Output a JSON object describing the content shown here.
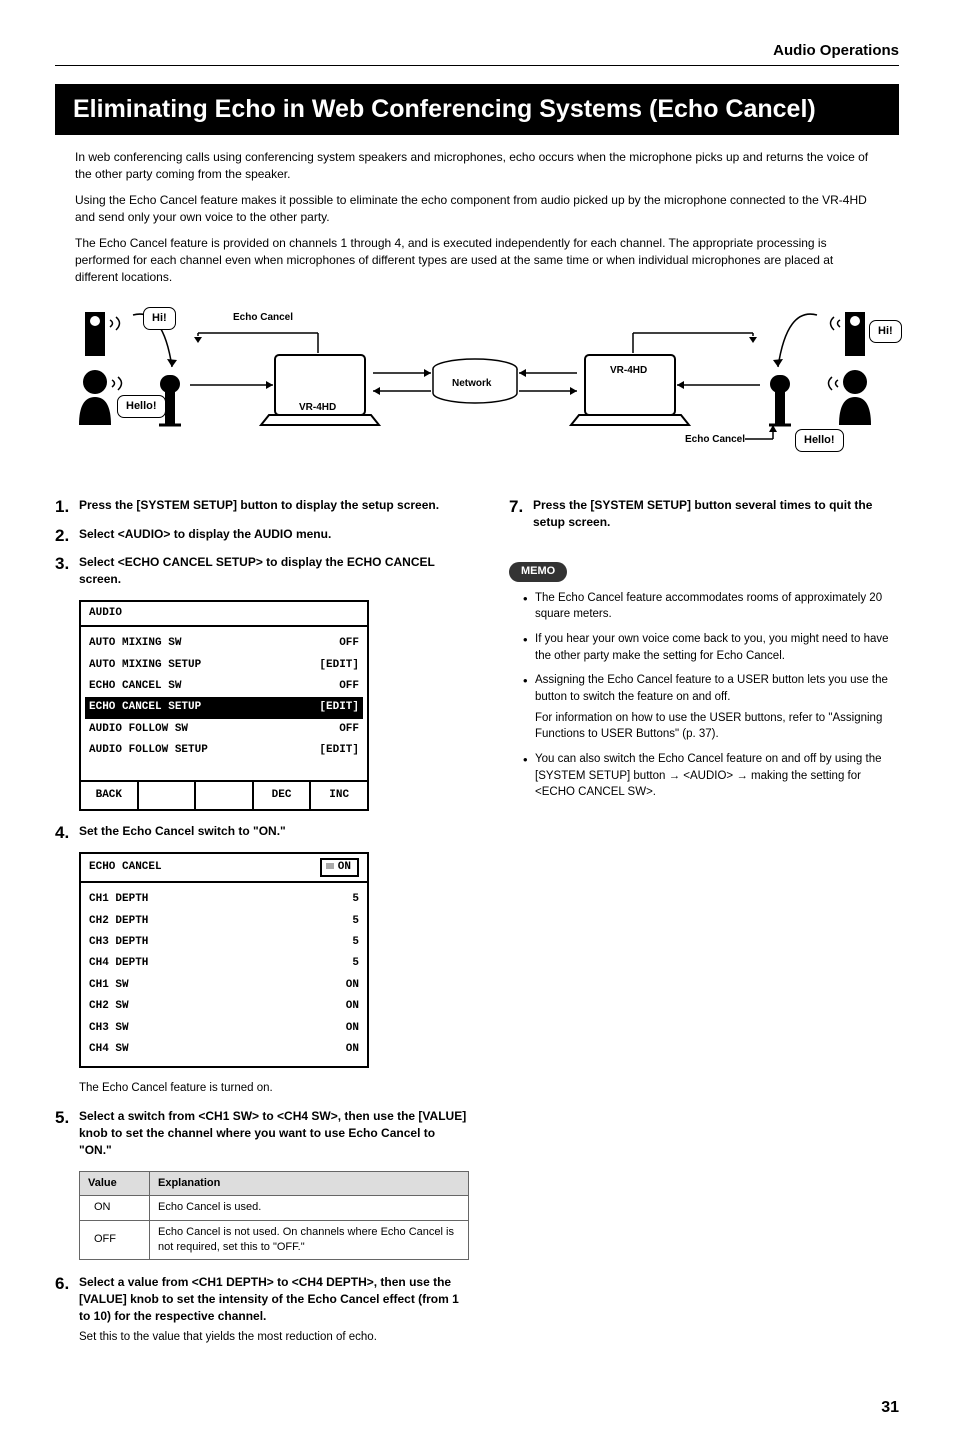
{
  "header": {
    "section": "Audio Operations"
  },
  "main_heading": "Eliminating Echo in Web Conferencing Systems (Echo Cancel)",
  "intro": {
    "p1": "In web conferencing calls using conferencing system speakers and microphones, echo occurs when the microphone picks up and returns the voice of the other party coming from the speaker.",
    "p2": "Using the Echo Cancel feature makes it possible to eliminate the echo component from audio picked up by the microphone connected to the VR-4HD and send only your own voice to the other party.",
    "p3": "The Echo Cancel feature is provided on channels 1 through 4, and is executed independently for each channel. The appropriate processing is performed for each channel even when microphones of different types are used at the same time or when individual microphones are placed at different locations."
  },
  "diagram": {
    "hi_left": "Hi!",
    "hello_left": "Hello!",
    "echo_cancel_left": "Echo Cancel",
    "vr4hd_left": "VR-4HD",
    "network": "Network",
    "vr4hd_right": "VR-4HD",
    "hi_right": "Hi!",
    "hello_right": "Hello!",
    "echo_cancel_right": "Echo Cancel",
    "colors": {
      "black": "#000000",
      "white": "#ffffff",
      "stroke_width": 2
    }
  },
  "steps": {
    "s1": "Press the [SYSTEM SETUP] button to display the setup screen.",
    "s2": "Select <AUDIO> to display the AUDIO menu.",
    "s3": "Select <ECHO CANCEL SETUP> to display the ECHO CANCEL screen.",
    "s4": "Set the Echo Cancel switch to \"ON.\"",
    "s4_sub": "The Echo Cancel feature is turned on.",
    "s5": "Select a switch from <CH1 SW> to <CH4 SW>, then use the [VALUE] knob to set the channel where you want to use Echo Cancel to \"ON.\"",
    "s6": "Select a value from <CH1 DEPTH> to <CH4 DEPTH>, then use the [VALUE] knob to set the intensity of the Echo Cancel effect (from 1 to 10) for the respective channel.",
    "s6_sub": "Set this to the value that yields the most reduction of echo.",
    "s7": "Press the [SYSTEM SETUP] button several times to quit the setup screen."
  },
  "audio_menu": {
    "title": "AUDIO",
    "rows": [
      {
        "label": "AUTO MIXING SW",
        "value": "OFF",
        "hl": false
      },
      {
        "label": "AUTO MIXING SETUP",
        "value": "[EDIT]",
        "hl": false
      },
      {
        "label": "ECHO CANCEL SW",
        "value": "OFF",
        "hl": false
      },
      {
        "label": "ECHO CANCEL SETUP",
        "value": "[EDIT]",
        "hl": true
      },
      {
        "label": "AUDIO FOLLOW SW",
        "value": "OFF",
        "hl": false
      },
      {
        "label": "AUDIO FOLLOW SETUP",
        "value": "[EDIT]",
        "hl": false
      }
    ],
    "footer": {
      "back": "BACK",
      "blank1": "",
      "blank2": "",
      "dec": "DEC",
      "inc": "INC"
    }
  },
  "echo_menu": {
    "title": "ECHO CANCEL",
    "on_label": "ON",
    "rows": [
      {
        "label": "CH1 DEPTH",
        "value": "5"
      },
      {
        "label": "CH2 DEPTH",
        "value": "5"
      },
      {
        "label": "CH3 DEPTH",
        "value": "5"
      },
      {
        "label": "CH4 DEPTH",
        "value": "5"
      },
      {
        "label": "CH1 SW",
        "value": "ON"
      },
      {
        "label": "CH2 SW",
        "value": "ON"
      },
      {
        "label": "CH3 SW",
        "value": "ON"
      },
      {
        "label": "CH4 SW",
        "value": "ON"
      }
    ]
  },
  "value_table": {
    "headers": {
      "value": "Value",
      "explanation": "Explanation"
    },
    "rows": [
      {
        "value": "ON",
        "explanation": "Echo Cancel is used."
      },
      {
        "value": "OFF",
        "explanation": "Echo Cancel is not used. On channels where Echo Cancel is not required, set this to \"OFF.\""
      }
    ]
  },
  "memo": {
    "label": "MEMO",
    "items": [
      {
        "text": "The Echo Cancel feature accommodates rooms of approximately 20 square meters."
      },
      {
        "text": "If you hear your own voice come back to you, you might need to have the other party make the setting for Echo Cancel."
      },
      {
        "text": "Assigning the Echo Cancel feature to a USER button lets you use the button to switch the feature on and off.",
        "sub": "For information on how to use the USER buttons, refer to \"Assigning Functions to USER Buttons\" (p. 37)."
      },
      {
        "text": "You can also switch the Echo Cancel feature on and off by using the [SYSTEM SETUP] button → <AUDIO> → making the setting for <ECHO CANCEL SW>."
      }
    ]
  },
  "page_number": "31"
}
